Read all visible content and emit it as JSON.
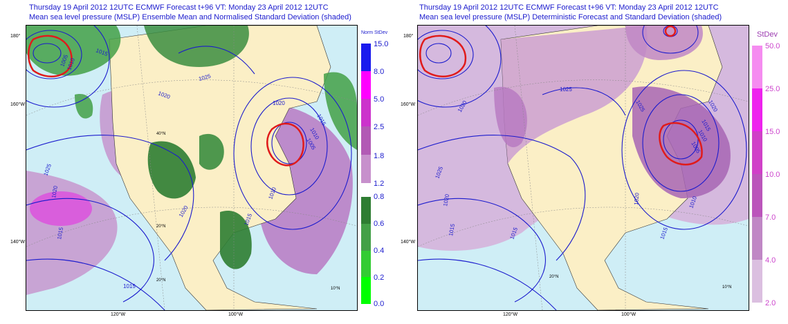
{
  "left_panel": {
    "title_line1": "Thursday 19 April 2012 12UTC ECMWF Forecast t+96  VT: Monday 23 April 2012 12UTC",
    "title_line2": "Mean sea level pressure (MSLP) Ensemble Mean and Normalised Standard Deviation (shaded)",
    "lat_labels": [
      "180°",
      "160°W",
      "140°W"
    ],
    "lon_labels": [
      "120°W",
      "100°W"
    ],
    "grid_labels": [
      "40°N",
      "20°N",
      "20°N",
      "10°N"
    ],
    "isobars": [
      "1005",
      "1010",
      "1015",
      "1020",
      "1025",
      "1020",
      "1015",
      "1010",
      "1005",
      "1025",
      "1020",
      "1015",
      "1020",
      "1015",
      "1010",
      "1015"
    ],
    "colorbar_title": "Norm StDev",
    "colorbar_upper": {
      "labels": [
        "15.0",
        "8.0",
        "5.0",
        "2.5",
        "1.8",
        "1.2"
      ],
      "colors": [
        "#1a1aee",
        "#ff00ff",
        "#cc33cc",
        "#b25ab5",
        "#c790cc"
      ]
    },
    "colorbar_lower": {
      "labels": [
        "0.8",
        "0.6",
        "0.4",
        "0.2",
        "0.0"
      ],
      "colors": [
        "#2e7d32",
        "#43a047",
        "#33cc33",
        "#00ff00"
      ]
    }
  },
  "right_panel": {
    "title_line1": "Thursday 19 April 2012 12UTC ECMWF Forecast t+96  VT: Monday 23 April 2012 12UTC",
    "title_line2": "Mean sea level pressure (MSLP) Deterministic Forecast and Standard Deviation (shaded)",
    "lat_labels": [
      "180°",
      "160°W",
      "140°W"
    ],
    "lon_labels": [
      "120°W",
      "100°W"
    ],
    "grid_labels": [
      "20°N",
      "10°N"
    ],
    "isobars": [
      "1025",
      "1020",
      "1015",
      "1015",
      "1020",
      "1025",
      "1020",
      "1015",
      "1010",
      "1005",
      "1020",
      "1015",
      "1010",
      "1025"
    ],
    "colorbar_title": "StDev",
    "colorbar": {
      "labels": [
        "50.0",
        "25.0",
        "15.0",
        "10.0",
        "7.0",
        "4.0",
        "2.0"
      ],
      "colors": [
        "#f58cf0",
        "#ee22ee",
        "#d040c8",
        "#bb55bb",
        "#c087c5",
        "#dbbfe0"
      ]
    }
  },
  "colors": {
    "ocean": "#cfeef6",
    "land": "#fbefc6",
    "isobar": "#1a1acd",
    "low_contour": "#e01b1b"
  }
}
